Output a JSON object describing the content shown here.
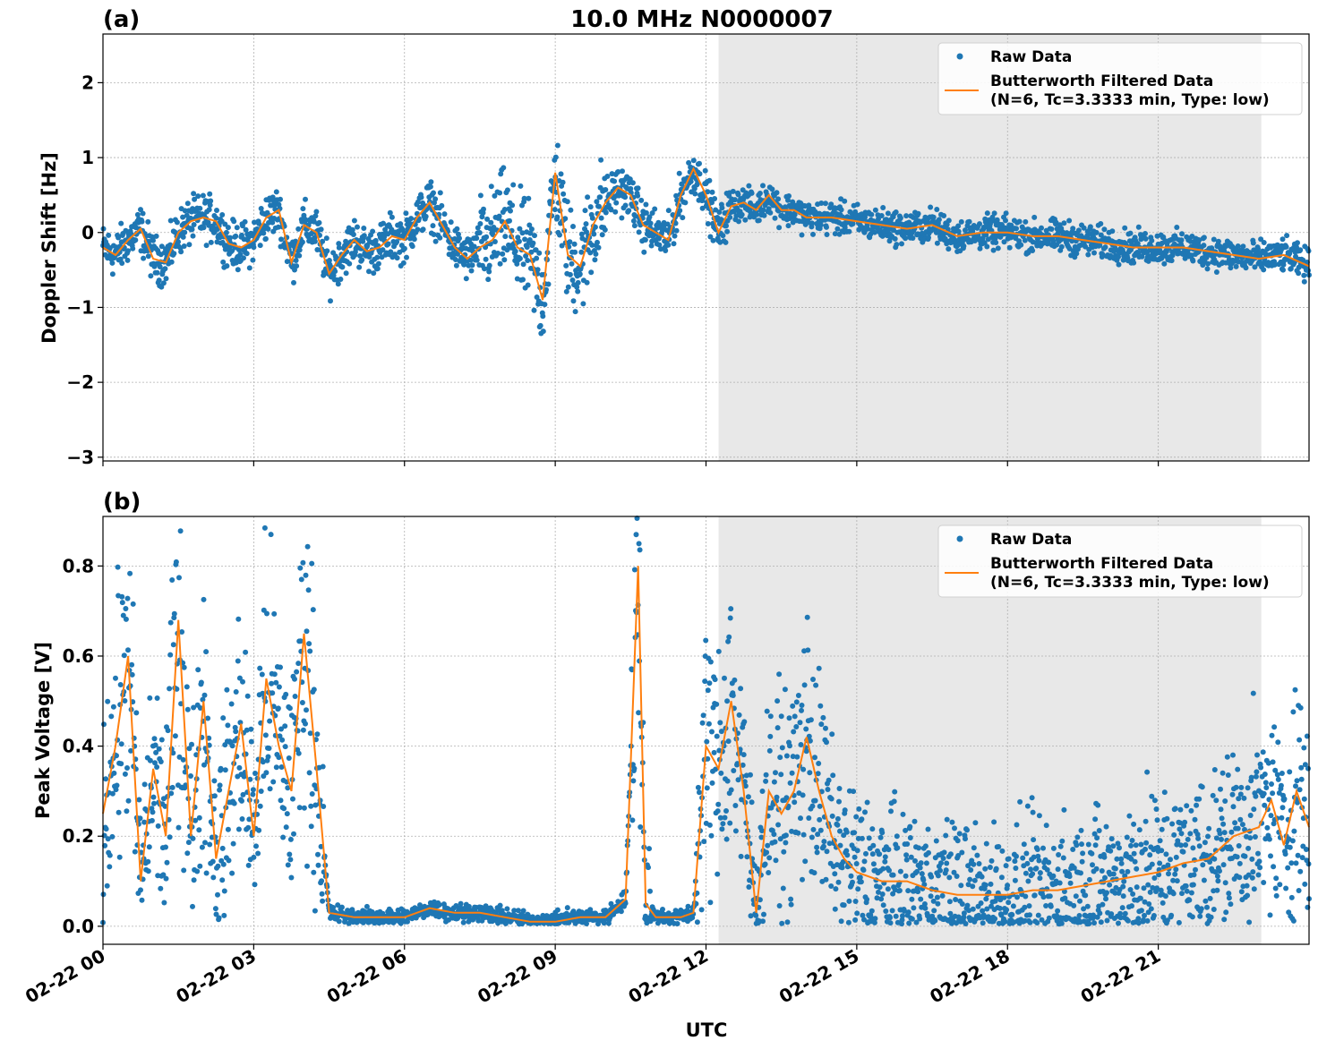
{
  "title": "10.0 MHz N0000007",
  "colors": {
    "raw": "#1f77b4",
    "filtered": "#ff7f0e",
    "shade": "#e8e8e8",
    "grid": "#b0b0b0"
  },
  "xaxis": {
    "label": "UTC",
    "range_hours": [
      0,
      24
    ],
    "ticks": [
      {
        "h": 0,
        "label": "02-22 00"
      },
      {
        "h": 3,
        "label": "02-22 03"
      },
      {
        "h": 6,
        "label": "02-22 06"
      },
      {
        "h": 9,
        "label": "02-22 09"
      },
      {
        "h": 12,
        "label": "02-22 12"
      },
      {
        "h": 15,
        "label": "02-22 15"
      },
      {
        "h": 18,
        "label": "02-22 18"
      },
      {
        "h": 21,
        "label": "02-22 21"
      }
    ]
  },
  "chart_data": [
    {
      "type": "scatter",
      "panel_label": "(a)",
      "ylabel": "Doppler Shift [Hz]",
      "ylim": [
        -3.05,
        2.65
      ],
      "yticks": [
        {
          "v": 2,
          "label": "2"
        },
        {
          "v": 1,
          "label": "1"
        },
        {
          "v": 0,
          "label": "0"
        },
        {
          "v": -1,
          "label": "−1"
        },
        {
          "v": -2,
          "label": "−2"
        },
        {
          "v": -3,
          "label": "−3"
        }
      ],
      "shaded_x_hours": [
        12.25,
        23.05
      ],
      "grid": true,
      "legend": {
        "placement": "upper right",
        "raw": "Raw Data",
        "filtered_line1": "Butterworth Filtered Data",
        "filtered_line2": "(N=6, Tc=3.3333 min, Type: low)"
      },
      "series": [
        {
          "name": "Butterworth Filtered Data",
          "hours": [
            0,
            0.25,
            0.5,
            0.75,
            1.0,
            1.25,
            1.5,
            1.75,
            2.0,
            2.25,
            2.5,
            2.75,
            3.0,
            3.25,
            3.5,
            3.75,
            4.0,
            4.25,
            4.5,
            4.75,
            5.0,
            5.25,
            5.5,
            5.75,
            6.0,
            6.25,
            6.5,
            6.75,
            7.0,
            7.25,
            7.5,
            7.75,
            8.0,
            8.25,
            8.5,
            8.75,
            9.0,
            9.25,
            9.5,
            9.75,
            10.0,
            10.25,
            10.5,
            10.75,
            11.0,
            11.25,
            11.5,
            11.75,
            12.0,
            12.25,
            12.5,
            12.75,
            13.0,
            13.25,
            13.5,
            13.75,
            14.0,
            14.5,
            15.0,
            15.5,
            16.0,
            16.5,
            17.0,
            17.5,
            18.0,
            18.5,
            19.0,
            19.5,
            20.0,
            20.5,
            21.0,
            21.5,
            22.0,
            22.5,
            23.0,
            23.5,
            24.0
          ],
          "values": [
            -0.2,
            -0.3,
            -0.1,
            0.05,
            -0.35,
            -0.4,
            0.0,
            0.15,
            0.2,
            0.15,
            -0.15,
            -0.2,
            -0.1,
            0.2,
            0.3,
            -0.4,
            0.1,
            0.0,
            -0.55,
            -0.3,
            -0.1,
            -0.25,
            -0.2,
            -0.05,
            -0.1,
            0.2,
            0.4,
            0.1,
            -0.2,
            -0.35,
            -0.2,
            -0.1,
            0.15,
            -0.2,
            -0.3,
            -0.9,
            0.8,
            -0.3,
            -0.45,
            0.1,
            0.4,
            0.6,
            0.5,
            0.1,
            0.0,
            -0.1,
            0.5,
            0.85,
            0.5,
            0.0,
            0.35,
            0.4,
            0.3,
            0.5,
            0.3,
            0.3,
            0.2,
            0.2,
            0.15,
            0.1,
            0.05,
            0.1,
            -0.05,
            0.0,
            0.0,
            -0.05,
            -0.05,
            -0.1,
            -0.15,
            -0.2,
            -0.2,
            -0.2,
            -0.25,
            -0.3,
            -0.35,
            -0.3,
            -0.45
          ]
        }
      ]
    },
    {
      "type": "scatter",
      "panel_label": "(b)",
      "ylabel": "Peak Voltage [V]",
      "ylim": [
        -0.04,
        0.91
      ],
      "yticks": [
        {
          "v": 0.8,
          "label": "0.8"
        },
        {
          "v": 0.6,
          "label": "0.6"
        },
        {
          "v": 0.4,
          "label": "0.4"
        },
        {
          "v": 0.2,
          "label": "0.2"
        },
        {
          "v": 0.0,
          "label": "0.0"
        }
      ],
      "shaded_x_hours": [
        12.25,
        23.05
      ],
      "grid": true,
      "legend": {
        "placement": "upper right",
        "raw": "Raw Data",
        "filtered_line1": "Butterworth Filtered Data",
        "filtered_line2": "(N=6, Tc=3.3333 min, Type: low)"
      },
      "series": [
        {
          "name": "Butterworth Filtered Data",
          "hours": [
            0,
            0.25,
            0.5,
            0.75,
            1.0,
            1.25,
            1.5,
            1.75,
            2.0,
            2.25,
            2.5,
            2.75,
            3.0,
            3.25,
            3.5,
            3.75,
            4.0,
            4.25,
            4.5,
            5.0,
            5.5,
            6.0,
            6.5,
            7.0,
            7.5,
            8.0,
            8.5,
            9.0,
            9.5,
            10.0,
            10.4,
            10.65,
            10.8,
            11.0,
            11.5,
            11.75,
            12.0,
            12.25,
            12.5,
            12.75,
            13.0,
            13.25,
            13.5,
            13.75,
            14.0,
            14.25,
            14.5,
            14.75,
            15.0,
            15.5,
            16.0,
            16.5,
            17.0,
            17.5,
            18.0,
            18.5,
            19.0,
            19.5,
            20.0,
            20.5,
            21.0,
            21.5,
            22.0,
            22.5,
            23.0,
            23.25,
            23.5,
            23.75,
            24.0
          ],
          "values": [
            0.25,
            0.4,
            0.6,
            0.1,
            0.35,
            0.2,
            0.68,
            0.2,
            0.5,
            0.15,
            0.3,
            0.45,
            0.2,
            0.55,
            0.4,
            0.3,
            0.65,
            0.35,
            0.03,
            0.02,
            0.02,
            0.02,
            0.04,
            0.03,
            0.03,
            0.02,
            0.01,
            0.01,
            0.02,
            0.02,
            0.06,
            0.8,
            0.05,
            0.02,
            0.02,
            0.03,
            0.4,
            0.35,
            0.5,
            0.3,
            0.03,
            0.3,
            0.25,
            0.3,
            0.42,
            0.3,
            0.2,
            0.15,
            0.12,
            0.1,
            0.1,
            0.08,
            0.07,
            0.07,
            0.07,
            0.08,
            0.08,
            0.09,
            0.1,
            0.11,
            0.12,
            0.14,
            0.15,
            0.2,
            0.22,
            0.28,
            0.18,
            0.3,
            0.22
          ]
        }
      ]
    }
  ]
}
